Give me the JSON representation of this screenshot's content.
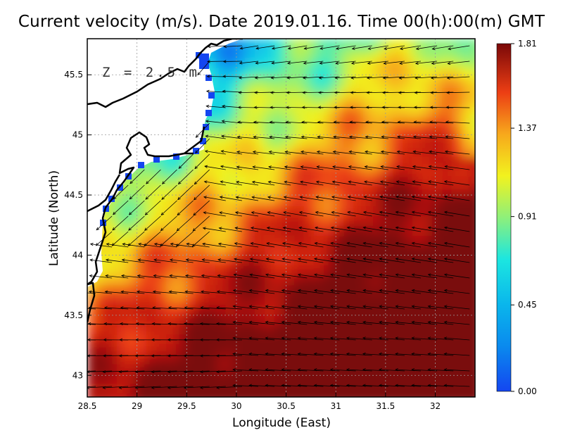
{
  "title": "Current velocity (m/s). Date 2019.01.16. Time 00(h):00(m) GMT",
  "depth_label": "Z = 2.5 m",
  "x_axis": {
    "title": "Longitude (East)",
    "range": [
      28.5,
      32.4
    ],
    "ticks": [
      "28.5",
      "29",
      "29.5",
      "30",
      "30.5",
      "31",
      "31.5",
      "32"
    ]
  },
  "y_axis": {
    "title": "Latitude (North)",
    "range": [
      42.82,
      45.8
    ],
    "ticks": [
      "43",
      "43.5",
      "44",
      "44.5",
      "45",
      "45.5"
    ]
  },
  "colorbar": {
    "labels": [
      "0.00",
      "0.45",
      "0.91",
      "1.37",
      "1.81"
    ],
    "min": 0.0,
    "max": 1.81,
    "colors": [
      "#1446f0",
      "#0aa6ee",
      "#1ce6e0",
      "#8ef07a",
      "#f2f21e",
      "#f7a81c",
      "#ec3e14",
      "#bc140e",
      "#7a0808"
    ]
  },
  "colors": {
    "land": "#ffffff",
    "coastline": "#000000",
    "grid": "#9a9a9a",
    "arrows": "#000000"
  }
}
